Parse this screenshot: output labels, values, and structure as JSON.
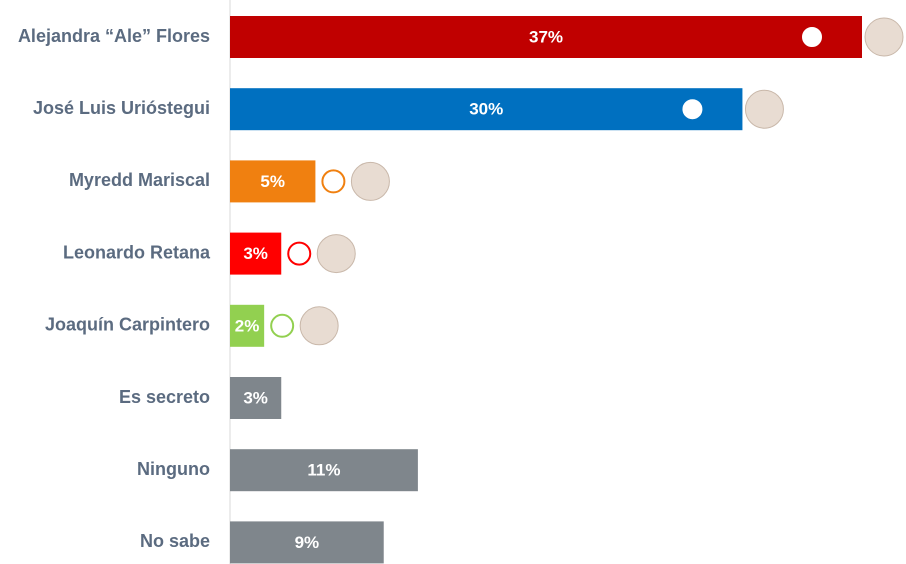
{
  "chart_data": {
    "type": "bar",
    "orientation": "horizontal",
    "categories": [
      "Alejandra “Ale” Flores",
      "José Luis Urióstegui",
      "Myredd Mariscal",
      "Leonardo Retana",
      "Joaquín Carpintero",
      "Es secreto",
      "Ninguno",
      "No sabe"
    ],
    "values": [
      37,
      30,
      5,
      3,
      2,
      3,
      11,
      9
    ],
    "value_labels": [
      "37%",
      "30%",
      "5%",
      "3%",
      "2%",
      "3%",
      "11%",
      "9%"
    ],
    "colors": [
      "#c00000",
      "#0070c0",
      "#f08010",
      "#ff0000",
      "#92d050",
      "#7f868c",
      "#7f868c",
      "#7f868c"
    ]
  }
}
